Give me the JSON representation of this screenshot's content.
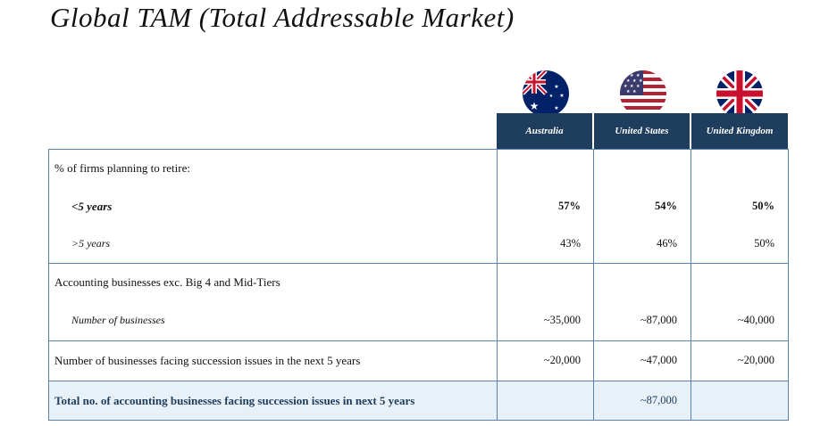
{
  "title": "Global TAM (Total Addressable Market)",
  "countries": [
    {
      "name": "Australia",
      "flag": "australia-flag-icon"
    },
    {
      "name": "United States",
      "flag": "us-flag-icon"
    },
    {
      "name": "United Kingdom",
      "flag": "uk-flag-icon"
    }
  ],
  "retire": {
    "label": "% of firms planning to retire:",
    "rows": [
      {
        "label": "<5 years",
        "values": [
          "57%",
          "54%",
          "50%"
        ]
      },
      {
        "label": ">5 years",
        "values": [
          "43%",
          "46%",
          "50%"
        ]
      }
    ]
  },
  "accounting": {
    "label": "Accounting businesses exc. Big 4 and Mid-Tiers",
    "sub_label": "Number of businesses",
    "values": [
      "~35,000",
      "~87,000",
      "~40,000"
    ]
  },
  "succession": {
    "label": "Number of businesses facing succession issues in the next 5 years",
    "values": [
      "~20,000",
      "~47,000",
      "~20,000"
    ]
  },
  "total": {
    "label": "Total no. of accounting businesses facing succession issues in next 5 years",
    "value": "~87,000"
  },
  "colors": {
    "header_bg": "#1f3d5c",
    "border": "#5b83ad",
    "total_bg": "#e8f0f8",
    "total_text": "#1f3d5c"
  }
}
